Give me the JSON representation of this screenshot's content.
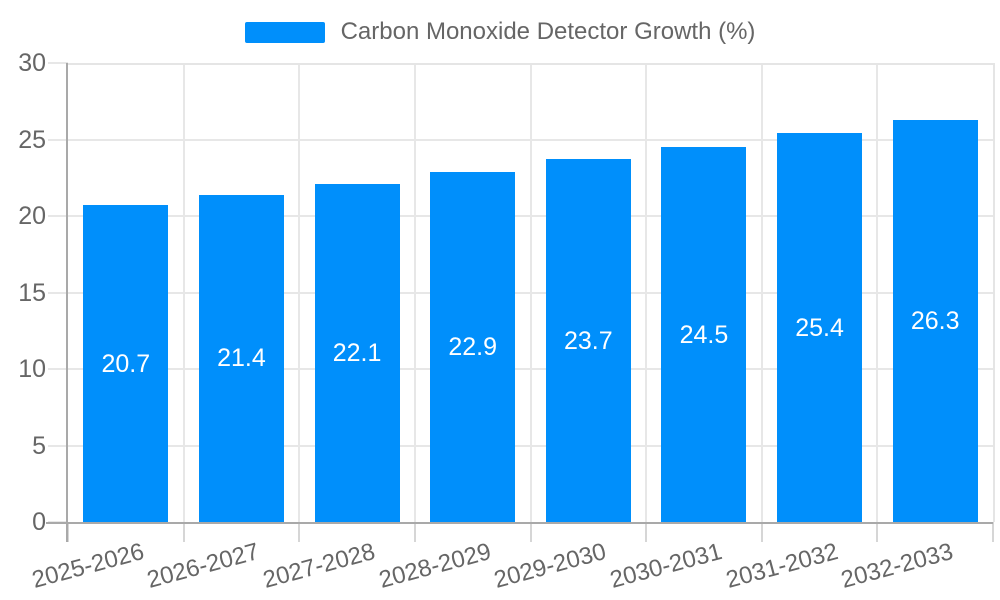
{
  "legend": {
    "label": "Carbon Monoxide Detector Growth (%)"
  },
  "chart_data": {
    "type": "bar",
    "title": "Carbon Monoxide Detector Growth (%)",
    "categories": [
      "2025-2026",
      "2026-2027",
      "2027-2028",
      "2028-2029",
      "2029-2030",
      "2030-2031",
      "2031-2032",
      "2032-2033"
    ],
    "series": [
      {
        "name": "Carbon Monoxide Detector Growth (%)",
        "values": [
          20.7,
          21.4,
          22.1,
          22.9,
          23.7,
          24.5,
          25.4,
          26.3
        ]
      }
    ],
    "data_labels": [
      "20.7",
      "21.4",
      "22.1",
      "22.9",
      "23.7",
      "24.5",
      "25.4",
      "26.3"
    ],
    "xlabel": "",
    "ylabel": "",
    "ylim": [
      0,
      30
    ],
    "yticks": [
      0,
      5,
      10,
      15,
      20,
      25,
      30
    ],
    "grid": "both",
    "legend_position": "top",
    "bar_label_position": "middle-inside",
    "colors": {
      "bar": "#008FFB",
      "bar_label": "#FFFFFF",
      "axis_text": "#666666",
      "legend_text": "#666666",
      "axis_line": "#A9A9A9",
      "grid_line": "#E7E7E7",
      "plot_border": "#E5E5E5",
      "x_tick": "#D6D6D6",
      "background": "#FFFFFF"
    }
  }
}
